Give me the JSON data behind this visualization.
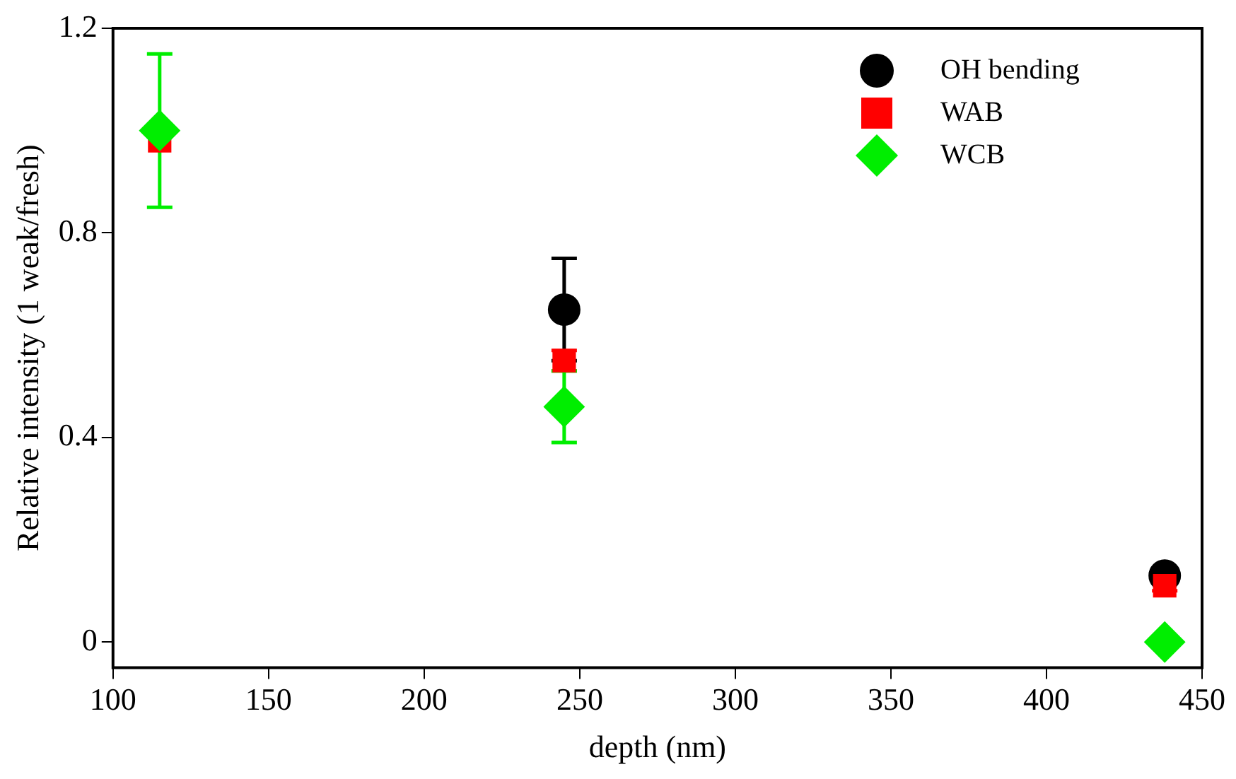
{
  "chart_data": {
    "type": "scatter",
    "xlabel": "depth (nm)",
    "ylabel": "Relative intensity (1 weak/fresh)",
    "x": [
      115,
      245,
      438
    ],
    "series": [
      {
        "name": "OH bending",
        "color": "#000000",
        "marker": "circle",
        "values": [
          null,
          0.65,
          0.13
        ],
        "errors": [
          null,
          0.1,
          0.01
        ]
      },
      {
        "name": "WAB",
        "color": "#ff0000",
        "marker": "square",
        "values": [
          0.98,
          0.55,
          0.11
        ],
        "errors": [
          null,
          0.02,
          0.01
        ]
      },
      {
        "name": "WCB",
        "color": "#00ee00",
        "marker": "diamond",
        "values": [
          1.0,
          0.46,
          0.0
        ],
        "errors": [
          0.15,
          0.07,
          null
        ]
      }
    ],
    "xlim": [
      100,
      450
    ],
    "xticks": [
      100,
      150,
      200,
      250,
      300,
      350,
      400,
      450
    ],
    "ylim": [
      -0.05,
      1.2
    ],
    "yticks": [
      0,
      0.4,
      0.8,
      1.2
    ],
    "grid": false,
    "legend": "top right"
  }
}
